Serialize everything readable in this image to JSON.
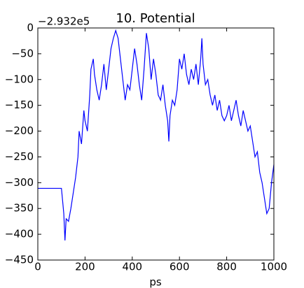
{
  "chart_data": {
    "type": "line",
    "title": "10. Potential",
    "offset_text": "−2.932e5",
    "x_label": "ps",
    "x": [
      0,
      100,
      105,
      110,
      115,
      120,
      130,
      140,
      150,
      160,
      170,
      175,
      185,
      195,
      200,
      210,
      220,
      225,
      235,
      240,
      250,
      260,
      270,
      280,
      290,
      300,
      310,
      320,
      330,
      340,
      350,
      360,
      370,
      380,
      390,
      400,
      410,
      420,
      430,
      440,
      450,
      460,
      470,
      480,
      490,
      500,
      510,
      520,
      530,
      540,
      550,
      555,
      560,
      570,
      580,
      590,
      600,
      610,
      620,
      630,
      640,
      650,
      660,
      670,
      680,
      690,
      695,
      700,
      710,
      720,
      730,
      740,
      750,
      760,
      770,
      780,
      790,
      800,
      810,
      820,
      830,
      840,
      850,
      860,
      870,
      880,
      890,
      900,
      910,
      920,
      930,
      940,
      950,
      960,
      970,
      980,
      990,
      1000
    ],
    "series": [
      {
        "name": "Potential",
        "color": "#0000ff",
        "values": [
          -311,
          -311,
          -335,
          -360,
          -412,
          -370,
          -375,
          -350,
          -320,
          -290,
          -250,
          -200,
          -225,
          -160,
          -180,
          -200,
          -130,
          -80,
          -60,
          -90,
          -120,
          -140,
          -110,
          -70,
          -120,
          -80,
          -40,
          -20,
          -5,
          -20,
          -60,
          -100,
          -140,
          -110,
          -120,
          -80,
          -40,
          -70,
          -110,
          -140,
          -80,
          -10,
          -40,
          -100,
          -60,
          -90,
          -130,
          -140,
          -110,
          -150,
          -180,
          -220,
          -170,
          -140,
          -150,
          -120,
          -60,
          -80,
          -50,
          -90,
          -110,
          -80,
          -100,
          -70,
          -110,
          -60,
          -20,
          -70,
          -110,
          -100,
          -130,
          -150,
          -130,
          -160,
          -140,
          -170,
          -180,
          -170,
          -150,
          -180,
          -160,
          -140,
          -170,
          -190,
          -160,
          -180,
          -200,
          -190,
          -220,
          -250,
          -240,
          -280,
          -300,
          -330,
          -360,
          -350,
          -300,
          -265
        ]
      }
    ],
    "xlim": [
      0,
      1000
    ],
    "ylim": [
      -450,
      0
    ],
    "xticks": [
      0,
      200,
      400,
      600,
      800,
      1000
    ],
    "yticks": [
      {
        "value": -450,
        "label": "−450"
      },
      {
        "value": -400,
        "label": "−400"
      },
      {
        "value": -350,
        "label": "−350"
      },
      {
        "value": -300,
        "label": "−300"
      },
      {
        "value": -250,
        "label": "−250"
      },
      {
        "value": -200,
        "label": "−200"
      },
      {
        "value": -150,
        "label": "−150"
      },
      {
        "value": -100,
        "label": "−100"
      },
      {
        "value": -50,
        "label": "−50"
      },
      0
    ],
    "grid": false
  }
}
